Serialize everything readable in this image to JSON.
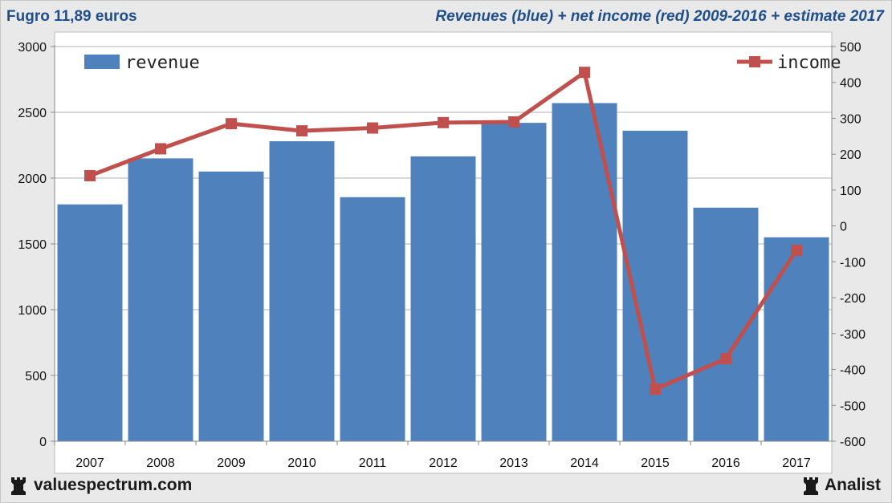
{
  "header": {
    "left_title": "Fugro 11,89 euros",
    "right_title": "Revenues (blue) + net income (red) 2009-2016 + estimate 2017"
  },
  "footer": {
    "left_logo_icon": "chess-rook-icon",
    "left_text": "valuespectrum.com",
    "right_logo_icon": "chess-rook-icon",
    "right_text": "Analist"
  },
  "colors": {
    "revenue_bar": "#4f81bd",
    "income_line": "#c0504d",
    "title_text": "#1f4e8c"
  },
  "chart_data": {
    "type": "bar",
    "categories": [
      "2007",
      "2008",
      "2009",
      "2010",
      "2011",
      "2012",
      "2013",
      "2014",
      "2015",
      "2016",
      "2017"
    ],
    "series": [
      {
        "name": "revenue",
        "type": "bar",
        "axis": "left",
        "values": [
          1800,
          2150,
          2050,
          2280,
          1855,
          2165,
          2420,
          2570,
          2360,
          1775,
          1550
        ]
      },
      {
        "name": "income",
        "type": "line",
        "axis": "right",
        "values": [
          140,
          215,
          285,
          265,
          273,
          288,
          290,
          428,
          -455,
          -370,
          -68
        ]
      }
    ],
    "y_left": {
      "min": 0,
      "max": 3000,
      "ticks": [
        0,
        500,
        1000,
        1500,
        2000,
        2500,
        3000
      ]
    },
    "y_right": {
      "min": -600,
      "max": 500,
      "ticks": [
        500,
        400,
        300,
        200,
        100,
        0,
        -100,
        -200,
        -300,
        -400,
        -500,
        -600
      ]
    },
    "legend": [
      {
        "label": "revenue",
        "placement": "top-left"
      },
      {
        "label": "income",
        "placement": "top-right"
      }
    ],
    "grid": "horizontal"
  }
}
